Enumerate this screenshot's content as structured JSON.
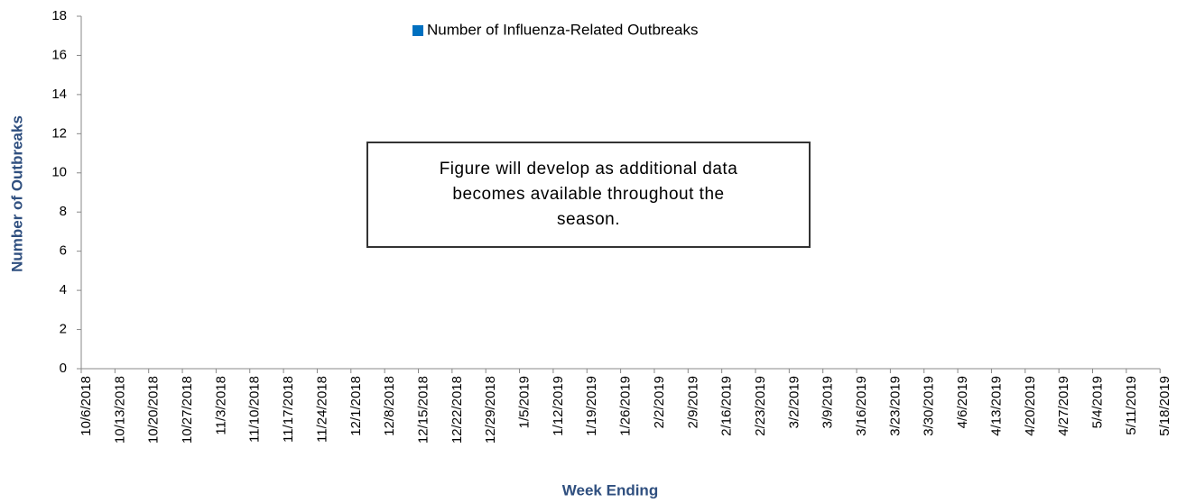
{
  "chart_data": {
    "type": "bar",
    "categories": [
      "10/6/2018",
      "10/13/2018",
      "10/20/2018",
      "10/27/2018",
      "11/3/2018",
      "11/10/2018",
      "11/17/2018",
      "11/24/2018",
      "12/1/2018",
      "12/8/2018",
      "12/15/2018",
      "12/22/2018",
      "12/29/2018",
      "1/5/2019",
      "1/12/2019",
      "1/19/2019",
      "1/26/2019",
      "2/2/2019",
      "2/9/2019",
      "2/16/2019",
      "2/23/2019",
      "3/2/2019",
      "3/9/2019",
      "3/16/2019",
      "3/23/2019",
      "3/30/2019",
      "4/6/2019",
      "4/13/2019",
      "4/20/2019",
      "4/27/2019",
      "5/4/2019",
      "5/11/2019",
      "5/18/2019"
    ],
    "series": [
      {
        "name": "Number of Influenza-Related Outbreaks",
        "color": "#0070c0",
        "values": [
          null,
          null,
          null,
          null,
          null,
          null,
          null,
          null,
          null,
          null,
          null,
          null,
          null,
          null,
          null,
          null,
          null,
          null,
          null,
          null,
          null,
          null,
          null,
          null,
          null,
          null,
          null,
          null,
          null,
          null,
          null,
          null,
          null
        ]
      }
    ],
    "x_label": "Week Ending",
    "y_label": "Number of Outbreaks",
    "annotation": "Figure will develop as additional data becomes available throughout the season.",
    "ylim": [
      0,
      18
    ],
    "yticks": [
      0,
      2,
      4,
      6,
      8,
      10,
      12,
      14,
      16,
      18
    ],
    "legend": "top"
  }
}
